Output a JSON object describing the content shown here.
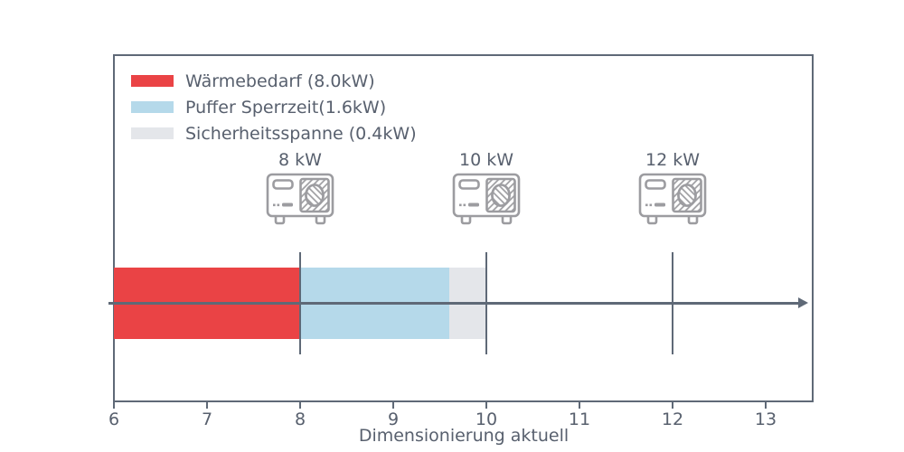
{
  "colors": {
    "axis": "#5f6977",
    "text": "#58606e",
    "icon_stroke": "#9c9ca0",
    "heat_demand": "#ea4345",
    "buffer": "#b5d9ea",
    "safety": "#e4e6ea"
  },
  "chart_data": {
    "type": "bar",
    "orientation": "horizontal",
    "stacked": true,
    "title": "",
    "xlabel": "Dimensionierung aktuell",
    "ylabel": "",
    "xlim": [
      6,
      13.5
    ],
    "x_ticks": [
      6,
      7,
      8,
      9,
      10,
      11,
      12,
      13
    ],
    "grid": false,
    "legend_position": "upper-left",
    "series": [
      {
        "name": "Wärmebedarf (8.0kW)",
        "value_kw": 8.0,
        "start": 6.0,
        "end": 8.0,
        "color": "#ea4345"
      },
      {
        "name": "Puffer Sperrzeit(1.6kW)",
        "value_kw": 1.6,
        "start": 8.0,
        "end": 9.6,
        "color": "#b5d9ea"
      },
      {
        "name": "Sicherheitsspanne (0.4kW)",
        "value_kw": 0.4,
        "start": 9.6,
        "end": 10.0,
        "color": "#e4e6ea"
      }
    ],
    "markers": [
      {
        "label": "8 kW",
        "x": 8,
        "icon": "heat-pump-icon"
      },
      {
        "label": "10 kW",
        "x": 10,
        "icon": "heat-pump-icon"
      },
      {
        "label": "12 kW",
        "x": 12,
        "icon": "heat-pump-icon"
      }
    ],
    "arrow": {
      "from_x": 5.94,
      "to_x": 13.45,
      "direction": "right"
    }
  }
}
